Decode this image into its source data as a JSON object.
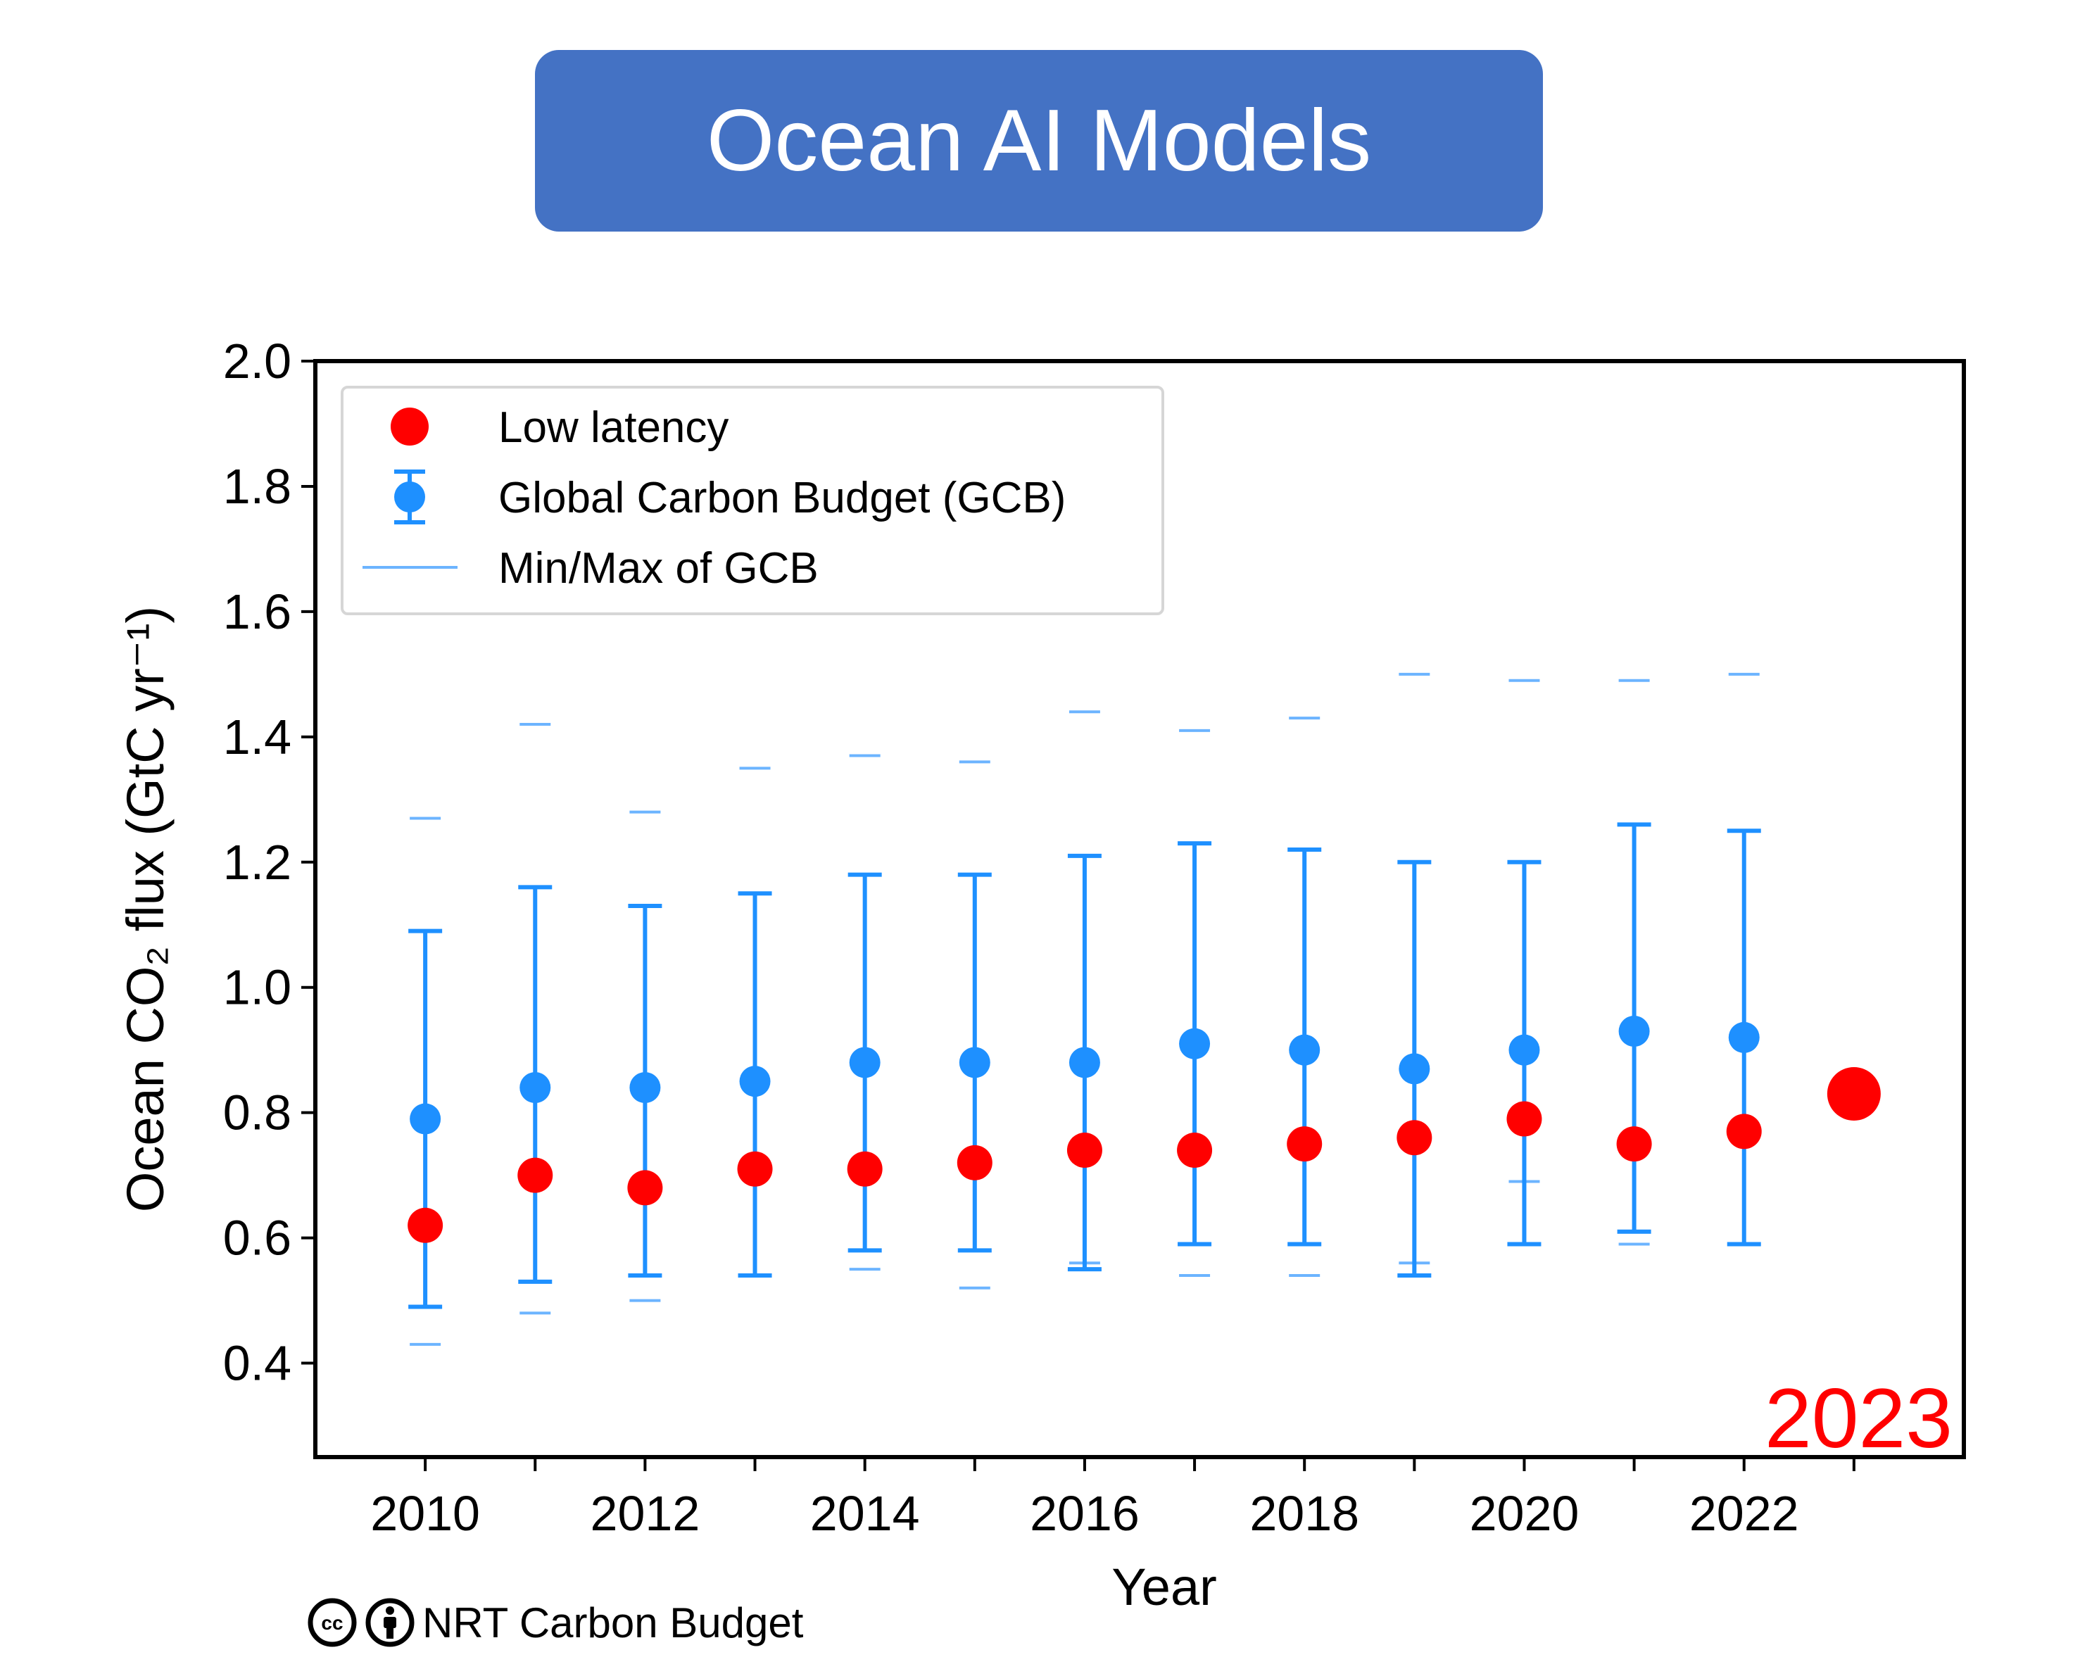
{
  "banner": {
    "title": "Ocean AI Models"
  },
  "credit": {
    "text": "NRT Carbon Budget",
    "icons": [
      "creative-commons-icon",
      "attribution-person-icon"
    ]
  },
  "colors": {
    "banner": "#4472c4",
    "gcb": "#1e90ff",
    "minmax": "#6cb4ff",
    "low_latency": "#ff0000"
  },
  "chart_data": {
    "type": "scatter",
    "title": "",
    "xlabel": "Year",
    "ylabel": "Ocean CO₂ flux (GtC yr⁻¹)",
    "xlim": [
      2009,
      2024
    ],
    "ylim": [
      0.25,
      2.0
    ],
    "x_ticks": [
      2010,
      2011,
      2012,
      2013,
      2014,
      2015,
      2016,
      2017,
      2018,
      2019,
      2020,
      2021,
      2022,
      2023
    ],
    "x_tick_labels": [
      "2010",
      "",
      "2012",
      "",
      "2014",
      "",
      "2016",
      "",
      "2018",
      "",
      "2020",
      "",
      "2022",
      ""
    ],
    "y_ticks": [
      0.4,
      0.6,
      0.8,
      1.0,
      1.2,
      1.4,
      1.6,
      1.8,
      2.0
    ],
    "y_tick_labels": [
      "0.4",
      "0.6",
      "0.8",
      "1.0",
      "1.2",
      "1.4",
      "1.6",
      "1.8",
      "2.0"
    ],
    "grid": false,
    "legend_position": "top-left",
    "annotation": "2023",
    "series": [
      {
        "name": "Low latency",
        "x": [
          2010,
          2011,
          2012,
          2013,
          2014,
          2015,
          2016,
          2017,
          2018,
          2019,
          2020,
          2021,
          2022,
          2023
        ],
        "y": [
          0.62,
          0.7,
          0.68,
          0.71,
          0.71,
          0.72,
          0.74,
          0.74,
          0.75,
          0.76,
          0.79,
          0.75,
          0.77,
          0.83
        ],
        "highlight_last": true
      },
      {
        "name": "Global Carbon Budget (GCB)",
        "x": [
          2010,
          2011,
          2012,
          2013,
          2014,
          2015,
          2016,
          2017,
          2018,
          2019,
          2020,
          2021,
          2022
        ],
        "y": [
          0.79,
          0.84,
          0.84,
          0.85,
          0.88,
          0.88,
          0.88,
          0.91,
          0.9,
          0.87,
          0.9,
          0.93,
          0.92
        ],
        "err_low": [
          0.49,
          0.53,
          0.54,
          0.54,
          0.58,
          0.58,
          0.55,
          0.59,
          0.59,
          0.54,
          0.59,
          0.61,
          0.59
        ],
        "err_high": [
          1.09,
          1.16,
          1.13,
          1.15,
          1.18,
          1.18,
          1.21,
          1.23,
          1.22,
          1.2,
          1.2,
          1.26,
          1.25
        ]
      },
      {
        "name": "Min/Max of GCB",
        "x": [
          2010,
          2011,
          2012,
          2013,
          2014,
          2015,
          2016,
          2017,
          2018,
          2019,
          2020,
          2021,
          2022
        ],
        "min": [
          0.43,
          0.48,
          0.5,
          0.54,
          0.55,
          0.52,
          0.56,
          0.54,
          0.54,
          0.56,
          0.69,
          0.59,
          0.59
        ],
        "max": [
          1.27,
          1.42,
          1.28,
          1.35,
          1.37,
          1.36,
          1.44,
          1.41,
          1.43,
          1.5,
          1.49,
          1.49,
          1.5
        ]
      }
    ]
  }
}
